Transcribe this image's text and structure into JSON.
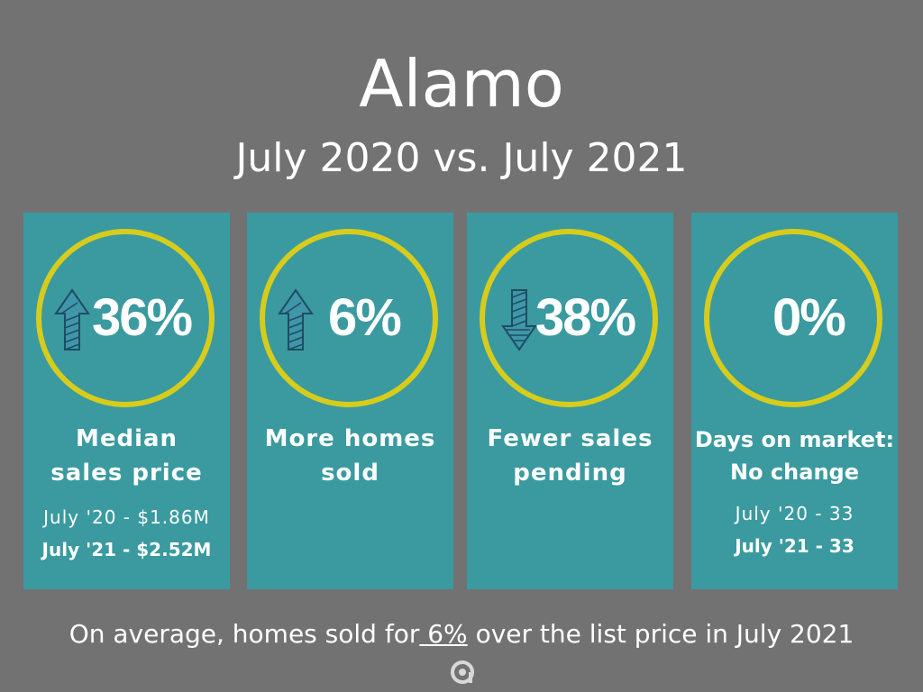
{
  "title": "Alamo",
  "subtitle": "July 2020 vs. July 2021",
  "colors": {
    "background": "#727272",
    "card": "#3a9a9f",
    "ring": "#d7cc1c",
    "arrow": "#3f96a9"
  },
  "cards": [
    {
      "stat": "36%",
      "trend": "up",
      "icon": "arrow-up-icon",
      "label_line1": "Median",
      "label_line2": "sales price",
      "prior": "July '20 - $1.86M",
      "current": "July '21 - $2.52M"
    },
    {
      "stat": "6%",
      "trend": "up",
      "icon": "arrow-up-icon",
      "label_line1": "More homes",
      "label_line2": "sold"
    },
    {
      "stat": "38%",
      "trend": "down",
      "icon": "arrow-down-icon",
      "label_line1": "Fewer sales",
      "label_line2": "pending"
    },
    {
      "stat": "0%",
      "trend": "none",
      "label_line1": "Days on market:",
      "label_line2": "No change",
      "prior": "July '20 - 33",
      "current": "July '21 - 33"
    }
  ],
  "footer": {
    "prefix": "On average, homes sold for",
    "highlight": " 6%",
    "suffix": " over the list price in July 2021"
  },
  "logo_icon": "brand-logo-icon"
}
